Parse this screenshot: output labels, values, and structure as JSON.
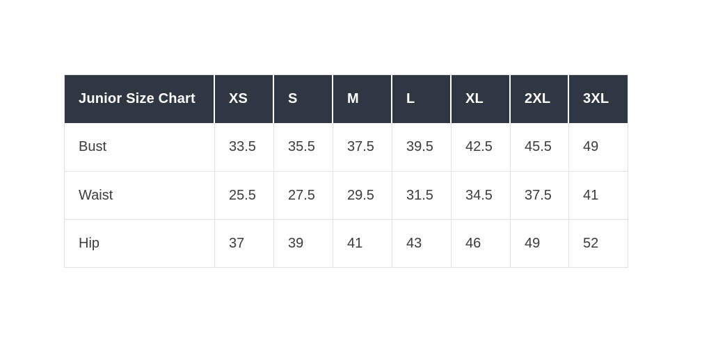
{
  "page": {
    "background": "#ffffff"
  },
  "chart_data": {
    "type": "table",
    "title": "Junior Size Chart",
    "columns": [
      "XS",
      "S",
      "M",
      "L",
      "XL",
      "2XL",
      "3XL"
    ],
    "rows": [
      {
        "label": "Bust",
        "values": [
          "33.5",
          "35.5",
          "37.5",
          "39.5",
          "42.5",
          "45.5",
          "49"
        ]
      },
      {
        "label": "Waist",
        "values": [
          "25.5",
          "27.5",
          "29.5",
          "31.5",
          "34.5",
          "37.5",
          "41"
        ]
      },
      {
        "label": "Hip",
        "values": [
          "37",
          "39",
          "41",
          "43",
          "46",
          "49",
          "52"
        ]
      }
    ],
    "layout": {
      "header_position": "top",
      "text_align": "left",
      "grid": "on"
    },
    "colors": {
      "header_bg": "#2f3842",
      "header_text": "#ffffff",
      "body_text": "#3b3b3b",
      "border": "#e2e2e2",
      "row_bg": "#ffffff"
    }
  }
}
